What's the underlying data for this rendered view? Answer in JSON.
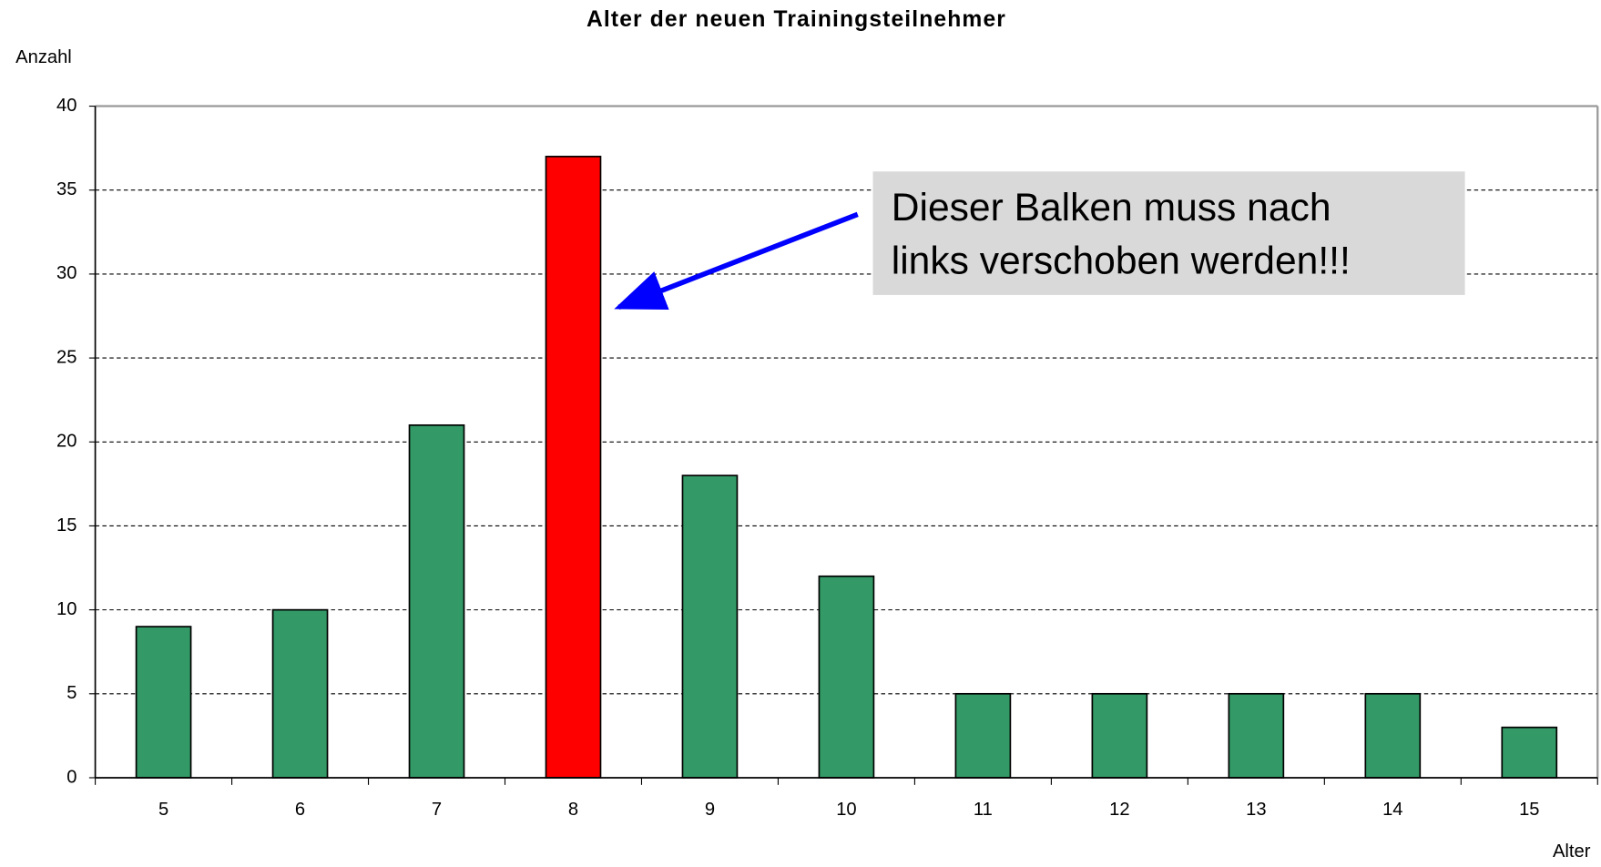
{
  "chart_data": {
    "type": "bar",
    "title": "Alter der neuen Trainingsteilnehmer",
    "y_label": "Anzahl",
    "x_label": "Alter",
    "categories": [
      "5",
      "6",
      "7",
      "8",
      "9",
      "10",
      "11",
      "12",
      "13",
      "14",
      "15"
    ],
    "values": [
      9,
      10,
      21,
      37,
      18,
      12,
      5,
      5,
      5,
      5,
      3
    ],
    "colors": [
      "#339966",
      "#339966",
      "#339966",
      "#ff0000",
      "#339966",
      "#339966",
      "#339966",
      "#339966",
      "#339966",
      "#339966",
      "#339966"
    ],
    "ylim": [
      0,
      40
    ],
    "yticks": [
      0,
      5,
      10,
      15,
      20,
      25,
      30,
      35,
      40
    ],
    "grid": true,
    "annotation": [
      "Dieser Balken muss nach",
      "links verschoben werden!!!"
    ]
  }
}
